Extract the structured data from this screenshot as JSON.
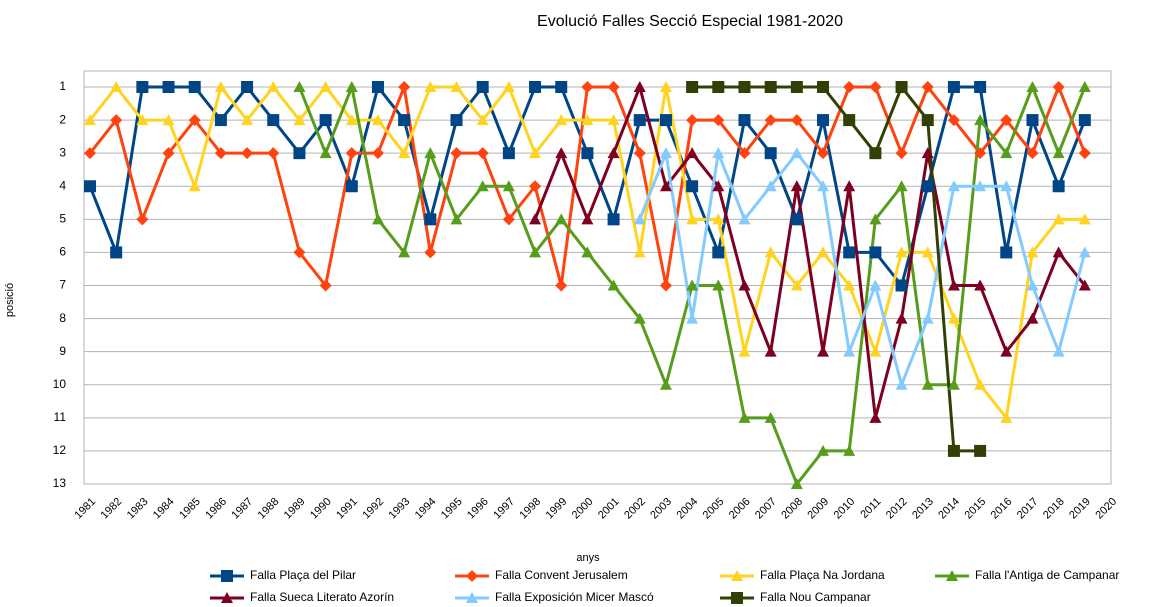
{
  "chart_data": {
    "type": "line",
    "title": "Evolució Falles Secció Especial 1981-2020",
    "x_label": "anys",
    "y_label": "posició",
    "categories": [
      "1981",
      "1982",
      "1983",
      "1984",
      "1985",
      "1986",
      "1987",
      "1988",
      "1989",
      "1990",
      "1991",
      "1992",
      "1993",
      "1994",
      "1995",
      "1996",
      "1997",
      "1998",
      "1999",
      "2000",
      "2001",
      "2002",
      "2003",
      "2004",
      "2005",
      "2006",
      "2007",
      "2008",
      "2009",
      "2010",
      "2011",
      "2012",
      "2013",
      "2014",
      "2015",
      "2016",
      "2017",
      "2018",
      "2019",
      "2020"
    ],
    "ylim": [
      1,
      13
    ],
    "y_reversed": true,
    "yticks": [
      1,
      2,
      3,
      4,
      5,
      6,
      7,
      8,
      9,
      10,
      11,
      12,
      13
    ],
    "grid": true,
    "legend": "bottom",
    "series": [
      {
        "name": "Falla Plaça del Pilar",
        "color": "#004586",
        "marker": "square",
        "values": [
          4,
          6,
          1,
          1,
          1,
          2,
          1,
          2,
          3,
          2,
          4,
          1,
          2,
          5,
          2,
          1,
          3,
          1,
          1,
          3,
          5,
          2,
          2,
          4,
          6,
          2,
          3,
          5,
          2,
          6,
          6,
          7,
          4,
          1,
          1,
          6,
          2,
          4,
          2,
          null
        ]
      },
      {
        "name": "Falla Convent Jerusalem",
        "color": "#ff420e",
        "marker": "diamond",
        "values": [
          3,
          2,
          5,
          3,
          2,
          3,
          3,
          3,
          6,
          7,
          3,
          3,
          1,
          6,
          3,
          3,
          5,
          4,
          7,
          1,
          1,
          3,
          7,
          2,
          2,
          3,
          2,
          2,
          3,
          1,
          1,
          3,
          1,
          2,
          3,
          2,
          3,
          1,
          3,
          null
        ]
      },
      {
        "name": "Falla Plaça Na Jordana",
        "color": "#ffd320",
        "marker": "triangle",
        "values": [
          2,
          1,
          2,
          2,
          4,
          1,
          2,
          1,
          2,
          1,
          2,
          2,
          3,
          1,
          1,
          2,
          1,
          3,
          2,
          2,
          2,
          6,
          1,
          5,
          5,
          9,
          6,
          7,
          6,
          7,
          9,
          6,
          6,
          8,
          10,
          11,
          6,
          5,
          5,
          null
        ]
      },
      {
        "name": "Falla l'Antiga de Campanar",
        "color": "#579d1c",
        "marker": "triangle",
        "values": [
          null,
          null,
          null,
          null,
          null,
          null,
          null,
          null,
          1,
          3,
          1,
          5,
          6,
          3,
          5,
          4,
          4,
          6,
          5,
          6,
          7,
          8,
          10,
          7,
          7,
          11,
          11,
          13,
          12,
          12,
          5,
          4,
          10,
          10,
          2,
          3,
          1,
          3,
          1,
          null
        ]
      },
      {
        "name": "Falla Sueca Literato Azorín",
        "color": "#7e0021",
        "marker": "triangle",
        "values": [
          null,
          null,
          null,
          null,
          null,
          null,
          null,
          null,
          null,
          null,
          null,
          null,
          null,
          null,
          null,
          null,
          null,
          5,
          3,
          5,
          3,
          1,
          4,
          3,
          4,
          7,
          9,
          4,
          9,
          4,
          11,
          8,
          3,
          7,
          7,
          9,
          8,
          6,
          7,
          null
        ]
      },
      {
        "name": "Falla Exposición Micer Mascó",
        "color": "#83caff",
        "marker": "triangle",
        "values": [
          null,
          null,
          null,
          null,
          null,
          null,
          null,
          null,
          null,
          null,
          null,
          null,
          null,
          null,
          null,
          null,
          null,
          null,
          null,
          null,
          null,
          5,
          3,
          8,
          3,
          5,
          4,
          3,
          4,
          9,
          7,
          10,
          8,
          4,
          4,
          4,
          7,
          9,
          6,
          null
        ]
      },
      {
        "name": "Falla Nou Campanar",
        "color": "#314004",
        "marker": "square",
        "values": [
          null,
          null,
          null,
          null,
          null,
          null,
          null,
          null,
          null,
          null,
          null,
          null,
          null,
          null,
          null,
          null,
          null,
          null,
          null,
          null,
          null,
          null,
          null,
          1,
          1,
          1,
          1,
          1,
          1,
          2,
          3,
          1,
          2,
          12,
          12,
          null,
          null,
          null,
          null,
          null
        ]
      }
    ]
  }
}
